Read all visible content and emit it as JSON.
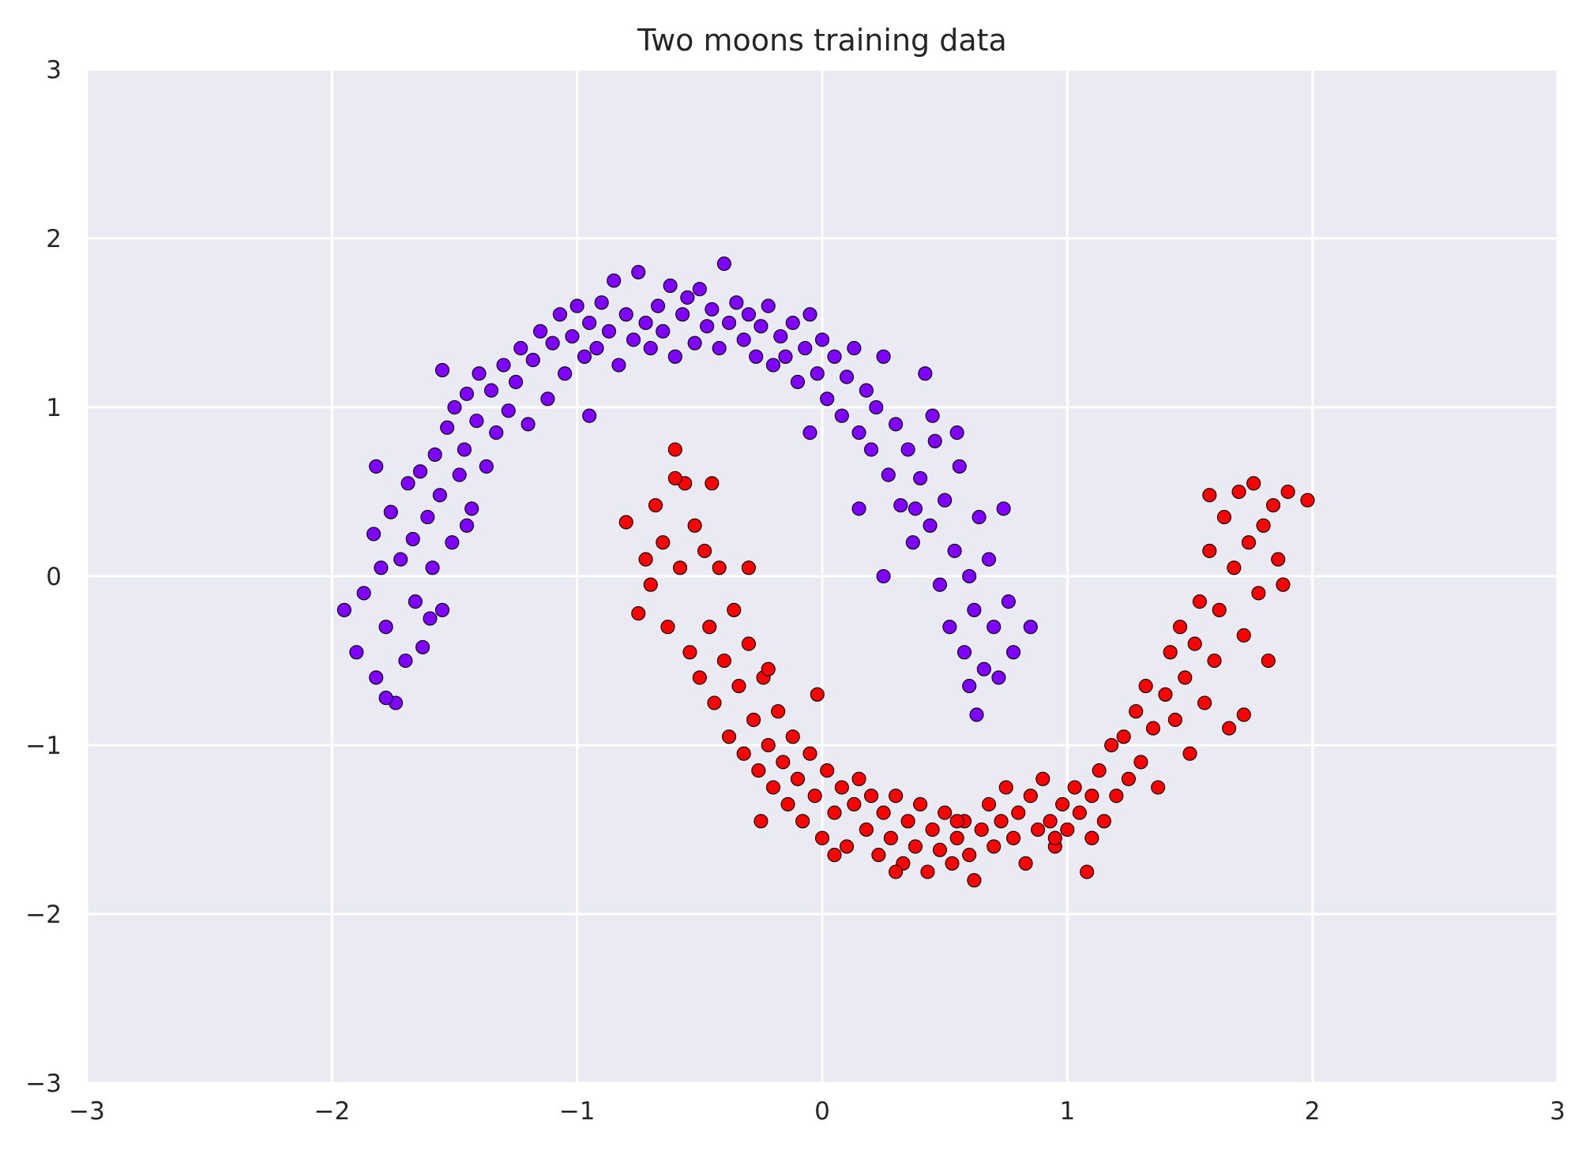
{
  "colors": {
    "plot_background": "#eaeaf2",
    "grid": "#ffffff",
    "class_0": "#8000ff",
    "class_1": "#ff0000",
    "marker_edge": "#000000"
  },
  "chart_data": {
    "type": "scatter",
    "title": "Two moons training data",
    "xlabel": "",
    "ylabel": "",
    "xlim": [
      -3,
      3
    ],
    "ylim": [
      -3,
      3
    ],
    "grid": true,
    "legend": "none",
    "x_ticks": [
      -3,
      -2,
      -1,
      0,
      1,
      2,
      3
    ],
    "x_tick_labels": [
      "−3",
      "−2",
      "−1",
      "0",
      "1",
      "2",
      "3"
    ],
    "y_ticks": [
      -3,
      -2,
      -1,
      0,
      1,
      2,
      3
    ],
    "y_tick_labels": [
      "−3",
      "−2",
      "−1",
      "0",
      "1",
      "2",
      "3"
    ],
    "marker": "circle",
    "series": [
      {
        "color": "#8000ff",
        "points": [
          [
            -1.95,
            -0.2
          ],
          [
            -1.9,
            -0.45
          ],
          [
            -1.87,
            -0.1
          ],
          [
            -1.83,
            0.25
          ],
          [
            -1.82,
            -0.6
          ],
          [
            -1.8,
            0.05
          ],
          [
            -1.78,
            -0.3
          ],
          [
            -1.76,
            0.38
          ],
          [
            -1.74,
            -0.75
          ],
          [
            -1.72,
            0.1
          ],
          [
            -1.7,
            -0.5
          ],
          [
            -1.69,
            0.55
          ],
          [
            -1.67,
            0.22
          ],
          [
            -1.66,
            -0.15
          ],
          [
            -1.64,
            0.62
          ],
          [
            -1.63,
            -0.42
          ],
          [
            -1.61,
            0.35
          ],
          [
            -1.59,
            0.05
          ],
          [
            -1.58,
            0.72
          ],
          [
            -1.56,
            0.48
          ],
          [
            -1.55,
            -0.2
          ],
          [
            -1.53,
            0.88
          ],
          [
            -1.51,
            0.2
          ],
          [
            -1.5,
            1.0
          ],
          [
            -1.48,
            0.6
          ],
          [
            -1.46,
            0.75
          ],
          [
            -1.45,
            1.08
          ],
          [
            -1.43,
            0.4
          ],
          [
            -1.41,
            0.92
          ],
          [
            -1.4,
            1.2
          ],
          [
            -1.37,
            0.65
          ],
          [
            -1.35,
            1.1
          ],
          [
            -1.33,
            0.85
          ],
          [
            -1.3,
            1.25
          ],
          [
            -1.28,
            0.98
          ],
          [
            -1.25,
            1.15
          ],
          [
            -1.23,
            1.35
          ],
          [
            -1.2,
            0.9
          ],
          [
            -1.18,
            1.28
          ],
          [
            -1.15,
            1.45
          ],
          [
            -1.12,
            1.05
          ],
          [
            -1.1,
            1.38
          ],
          [
            -1.07,
            1.55
          ],
          [
            -1.05,
            1.2
          ],
          [
            -1.02,
            1.42
          ],
          [
            -1.0,
            1.6
          ],
          [
            -0.97,
            1.3
          ],
          [
            -0.95,
            1.5
          ],
          [
            -0.92,
            1.35
          ],
          [
            -0.9,
            1.62
          ],
          [
            -0.87,
            1.45
          ],
          [
            -0.85,
            1.75
          ],
          [
            -0.83,
            1.25
          ],
          [
            -0.8,
            1.55
          ],
          [
            -0.77,
            1.4
          ],
          [
            -0.75,
            1.8
          ],
          [
            -0.72,
            1.5
          ],
          [
            -0.7,
            1.35
          ],
          [
            -0.67,
            1.6
          ],
          [
            -0.65,
            1.45
          ],
          [
            -0.62,
            1.72
          ],
          [
            -0.6,
            1.3
          ],
          [
            -0.57,
            1.55
          ],
          [
            -0.55,
            1.65
          ],
          [
            -0.52,
            1.38
          ],
          [
            -0.5,
            1.7
          ],
          [
            -0.47,
            1.48
          ],
          [
            -0.45,
            1.58
          ],
          [
            -0.42,
            1.35
          ],
          [
            -0.4,
            1.85
          ],
          [
            -0.38,
            1.5
          ],
          [
            -0.35,
            1.62
          ],
          [
            -0.32,
            1.4
          ],
          [
            -0.3,
            1.55
          ],
          [
            -0.27,
            1.3
          ],
          [
            -0.25,
            1.48
          ],
          [
            -0.22,
            1.6
          ],
          [
            -0.2,
            1.25
          ],
          [
            -0.17,
            1.42
          ],
          [
            -0.15,
            1.3
          ],
          [
            -0.12,
            1.5
          ],
          [
            -0.1,
            1.15
          ],
          [
            -0.07,
            1.35
          ],
          [
            -0.05,
            1.55
          ],
          [
            -0.02,
            1.2
          ],
          [
            0.0,
            1.4
          ],
          [
            0.02,
            1.05
          ],
          [
            0.05,
            1.3
          ],
          [
            0.08,
            0.95
          ],
          [
            0.1,
            1.18
          ],
          [
            0.13,
            1.35
          ],
          [
            0.15,
            0.85
          ],
          [
            0.18,
            1.1
          ],
          [
            0.2,
            0.75
          ],
          [
            0.22,
            1.0
          ],
          [
            0.25,
            1.3
          ],
          [
            0.27,
            0.6
          ],
          [
            0.3,
            0.9
          ],
          [
            0.32,
            0.42
          ],
          [
            0.35,
            0.75
          ],
          [
            0.37,
            0.2
          ],
          [
            0.4,
            0.58
          ],
          [
            0.42,
            1.2
          ],
          [
            0.44,
            0.3
          ],
          [
            0.46,
            0.8
          ],
          [
            0.48,
            -0.05
          ],
          [
            0.5,
            0.45
          ],
          [
            0.52,
            -0.3
          ],
          [
            0.54,
            0.15
          ],
          [
            0.56,
            0.65
          ],
          [
            0.58,
            -0.45
          ],
          [
            0.6,
            0.0
          ],
          [
            0.62,
            -0.2
          ],
          [
            0.64,
            0.35
          ],
          [
            0.66,
            -0.55
          ],
          [
            0.68,
            0.1
          ],
          [
            0.7,
            -0.3
          ],
          [
            0.72,
            -0.6
          ],
          [
            0.74,
            0.4
          ],
          [
            0.76,
            -0.15
          ],
          [
            0.78,
            -0.45
          ],
          [
            0.85,
            -0.3
          ],
          [
            0.63,
            -0.82
          ],
          [
            0.6,
            -0.65
          ],
          [
            0.55,
            0.85
          ],
          [
            0.25,
            0.0
          ],
          [
            -0.95,
            0.95
          ],
          [
            -1.45,
            0.3
          ],
          [
            -1.6,
            -0.25
          ],
          [
            -1.78,
            -0.72
          ],
          [
            -1.55,
            1.22
          ],
          [
            -1.82,
            0.65
          ],
          [
            0.45,
            0.95
          ],
          [
            0.38,
            0.4
          ],
          [
            -0.05,
            0.85
          ],
          [
            0.15,
            0.4
          ]
        ]
      },
      {
        "color": "#ff0000",
        "points": [
          [
            -0.8,
            0.32
          ],
          [
            -0.75,
            -0.22
          ],
          [
            -0.72,
            0.1
          ],
          [
            -0.7,
            -0.05
          ],
          [
            -0.68,
            0.42
          ],
          [
            -0.65,
            0.2
          ],
          [
            -0.63,
            -0.3
          ],
          [
            -0.6,
            0.75
          ],
          [
            -0.58,
            0.05
          ],
          [
            -0.56,
            0.55
          ],
          [
            -0.54,
            -0.45
          ],
          [
            -0.52,
            0.3
          ],
          [
            -0.5,
            -0.6
          ],
          [
            -0.48,
            0.15
          ],
          [
            -0.46,
            -0.3
          ],
          [
            -0.44,
            -0.75
          ],
          [
            -0.42,
            0.05
          ],
          [
            -0.4,
            -0.5
          ],
          [
            -0.38,
            -0.95
          ],
          [
            -0.36,
            -0.2
          ],
          [
            -0.34,
            -0.65
          ],
          [
            -0.32,
            -1.05
          ],
          [
            -0.3,
            -0.4
          ],
          [
            -0.28,
            -0.85
          ],
          [
            -0.26,
            -1.15
          ],
          [
            -0.24,
            -0.6
          ],
          [
            -0.22,
            -1.0
          ],
          [
            -0.2,
            -1.25
          ],
          [
            -0.18,
            -0.8
          ],
          [
            -0.16,
            -1.1
          ],
          [
            -0.14,
            -1.35
          ],
          [
            -0.12,
            -0.95
          ],
          [
            -0.1,
            -1.2
          ],
          [
            -0.08,
            -1.45
          ],
          [
            -0.05,
            -1.05
          ],
          [
            -0.03,
            -1.3
          ],
          [
            0.0,
            -1.55
          ],
          [
            0.02,
            -1.15
          ],
          [
            0.05,
            -1.4
          ],
          [
            0.08,
            -1.25
          ],
          [
            0.1,
            -1.6
          ],
          [
            0.13,
            -1.35
          ],
          [
            0.15,
            -1.2
          ],
          [
            0.18,
            -1.5
          ],
          [
            0.2,
            -1.3
          ],
          [
            0.23,
            -1.65
          ],
          [
            0.25,
            -1.4
          ],
          [
            0.28,
            -1.55
          ],
          [
            0.3,
            -1.3
          ],
          [
            0.33,
            -1.7
          ],
          [
            0.35,
            -1.45
          ],
          [
            0.38,
            -1.6
          ],
          [
            0.4,
            -1.35
          ],
          [
            0.43,
            -1.75
          ],
          [
            0.45,
            -1.5
          ],
          [
            0.48,
            -1.62
          ],
          [
            0.5,
            -1.4
          ],
          [
            0.53,
            -1.7
          ],
          [
            0.55,
            -1.55
          ],
          [
            0.58,
            -1.45
          ],
          [
            0.6,
            -1.65
          ],
          [
            0.62,
            -1.8
          ],
          [
            0.65,
            -1.5
          ],
          [
            0.68,
            -1.35
          ],
          [
            0.7,
            -1.6
          ],
          [
            0.73,
            -1.45
          ],
          [
            0.75,
            -1.25
          ],
          [
            0.78,
            -1.55
          ],
          [
            0.8,
            -1.4
          ],
          [
            0.83,
            -1.7
          ],
          [
            0.85,
            -1.3
          ],
          [
            0.88,
            -1.5
          ],
          [
            0.9,
            -1.2
          ],
          [
            0.93,
            -1.45
          ],
          [
            0.95,
            -1.6
          ],
          [
            0.98,
            -1.35
          ],
          [
            1.0,
            -1.5
          ],
          [
            1.03,
            -1.25
          ],
          [
            1.05,
            -1.4
          ],
          [
            1.08,
            -1.75
          ],
          [
            1.1,
            -1.3
          ],
          [
            1.13,
            -1.15
          ],
          [
            1.15,
            -1.45
          ],
          [
            1.18,
            -1.0
          ],
          [
            1.2,
            -1.3
          ],
          [
            1.23,
            -0.95
          ],
          [
            1.25,
            -1.2
          ],
          [
            1.28,
            -0.8
          ],
          [
            1.3,
            -1.1
          ],
          [
            1.32,
            -0.65
          ],
          [
            1.35,
            -0.9
          ],
          [
            1.37,
            -1.25
          ],
          [
            1.4,
            -0.7
          ],
          [
            1.42,
            -0.45
          ],
          [
            1.44,
            -0.85
          ],
          [
            1.46,
            -0.3
          ],
          [
            1.48,
            -0.6
          ],
          [
            1.5,
            -1.05
          ],
          [
            1.52,
            -0.4
          ],
          [
            1.54,
            -0.15
          ],
          [
            1.56,
            -0.75
          ],
          [
            1.58,
            0.15
          ],
          [
            1.6,
            -0.5
          ],
          [
            1.62,
            -0.2
          ],
          [
            1.64,
            0.35
          ],
          [
            1.66,
            -0.9
          ],
          [
            1.68,
            0.05
          ],
          [
            1.7,
            0.5
          ],
          [
            1.72,
            -0.35
          ],
          [
            1.74,
            0.2
          ],
          [
            1.76,
            0.55
          ],
          [
            1.78,
            -0.1
          ],
          [
            1.8,
            0.3
          ],
          [
            1.82,
            -0.5
          ],
          [
            1.84,
            0.42
          ],
          [
            1.86,
            0.1
          ],
          [
            1.88,
            -0.05
          ],
          [
            1.9,
            0.5
          ],
          [
            1.98,
            0.45
          ],
          [
            1.72,
            -0.82
          ],
          [
            1.58,
            0.48
          ],
          [
            -0.6,
            0.58
          ],
          [
            -0.45,
            0.55
          ],
          [
            -0.3,
            0.05
          ],
          [
            -0.22,
            -0.55
          ],
          [
            -0.02,
            -0.7
          ],
          [
            0.55,
            -1.45
          ],
          [
            0.95,
            -1.55
          ],
          [
            1.1,
            -1.55
          ],
          [
            0.3,
            -1.75
          ],
          [
            -0.25,
            -1.45
          ],
          [
            0.05,
            -1.65
          ]
        ]
      }
    ]
  }
}
